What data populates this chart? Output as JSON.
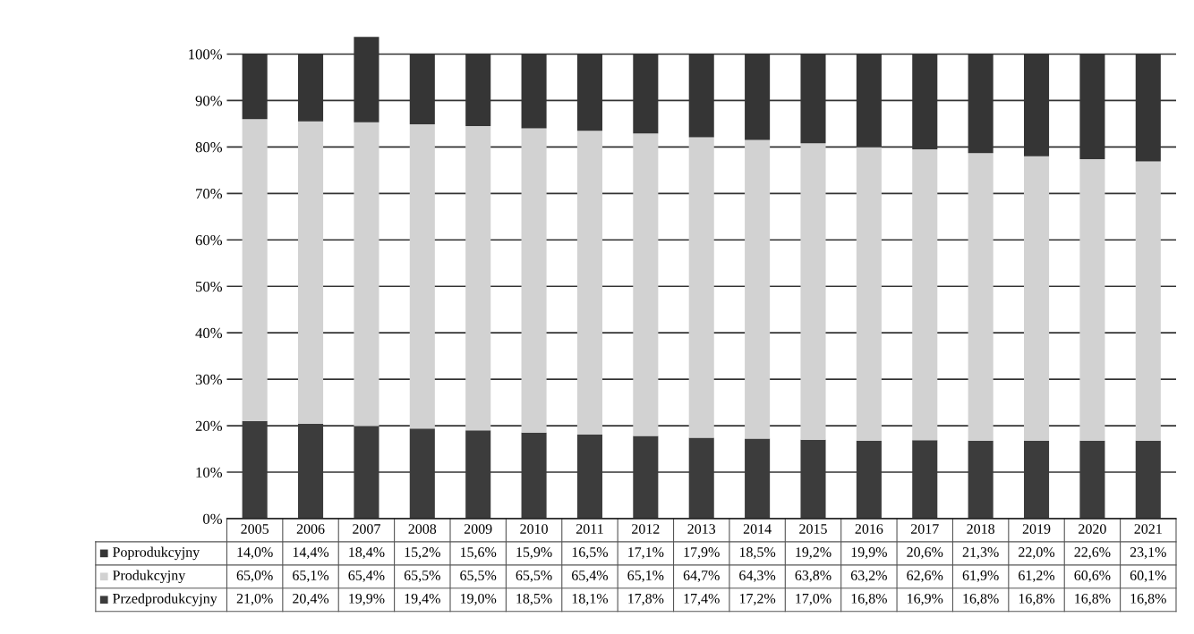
{
  "chart_data": {
    "type": "bar",
    "stacked": true,
    "categories": [
      "2005",
      "2006",
      "2007",
      "2008",
      "2009",
      "2010",
      "2011",
      "2012",
      "2013",
      "2014",
      "2015",
      "2016",
      "2017",
      "2018",
      "2019",
      "2020",
      "2021"
    ],
    "series": [
      {
        "name": "Przedprodukcyjny",
        "color": "#3c3c3c",
        "values": [
          21.0,
          20.4,
          19.9,
          19.4,
          19.0,
          18.5,
          18.1,
          17.8,
          17.4,
          17.2,
          17.0,
          16.8,
          16.9,
          16.8,
          16.8,
          16.8,
          16.8
        ],
        "value_labels": [
          "21,0%",
          "20,4%",
          "19,9%",
          "19,4%",
          "19,0%",
          "18,5%",
          "18,1%",
          "17,8%",
          "17,4%",
          "17,2%",
          "17,0%",
          "16,8%",
          "16,9%",
          "16,8%",
          "16,8%",
          "16,8%",
          "16,8%"
        ]
      },
      {
        "name": "Produkcyjny",
        "color": "#d2d2d2",
        "values": [
          65.0,
          65.1,
          65.4,
          65.5,
          65.5,
          65.5,
          65.4,
          65.1,
          64.7,
          64.3,
          63.8,
          63.2,
          62.6,
          61.9,
          61.2,
          60.6,
          60.1
        ],
        "value_labels": [
          "65,0%",
          "65,1%",
          "65,4%",
          "65,5%",
          "65,5%",
          "65,5%",
          "65,4%",
          "65,1%",
          "64,7%",
          "64,3%",
          "63,8%",
          "63,2%",
          "62,6%",
          "61,9%",
          "61,2%",
          "60,6%",
          "60,1%"
        ]
      },
      {
        "name": "Poprodukcyjny",
        "color": "#353535",
        "values": [
          14.0,
          14.4,
          18.4,
          15.2,
          15.6,
          15.9,
          16.5,
          17.1,
          17.9,
          18.5,
          19.2,
          19.9,
          20.6,
          21.3,
          22.0,
          22.6,
          23.1
        ],
        "value_labels": [
          "14,0%",
          "14,4%",
          "18,4%",
          "15,2%",
          "15,6%",
          "15,9%",
          "16,5%",
          "17,1%",
          "17,9%",
          "18,5%",
          "19,2%",
          "19,9%",
          "20,6%",
          "21,3%",
          "22,0%",
          "22,6%",
          "23,1%"
        ]
      }
    ],
    "ylim": [
      0,
      104
    ],
    "yticks": [
      {
        "value": 0,
        "label": "0%"
      },
      {
        "value": 10,
        "label": "10%"
      },
      {
        "value": 20,
        "label": "20%"
      },
      {
        "value": 30,
        "label": "30%"
      },
      {
        "value": 40,
        "label": "40%"
      },
      {
        "value": 50,
        "label": "50%"
      },
      {
        "value": 60,
        "label": "60%"
      },
      {
        "value": 70,
        "label": "70%"
      },
      {
        "value": 80,
        "label": "80%"
      },
      {
        "value": 90,
        "label": "90%"
      },
      {
        "value": 100,
        "label": "100%"
      }
    ],
    "grid": "y",
    "legend": "bottom"
  }
}
